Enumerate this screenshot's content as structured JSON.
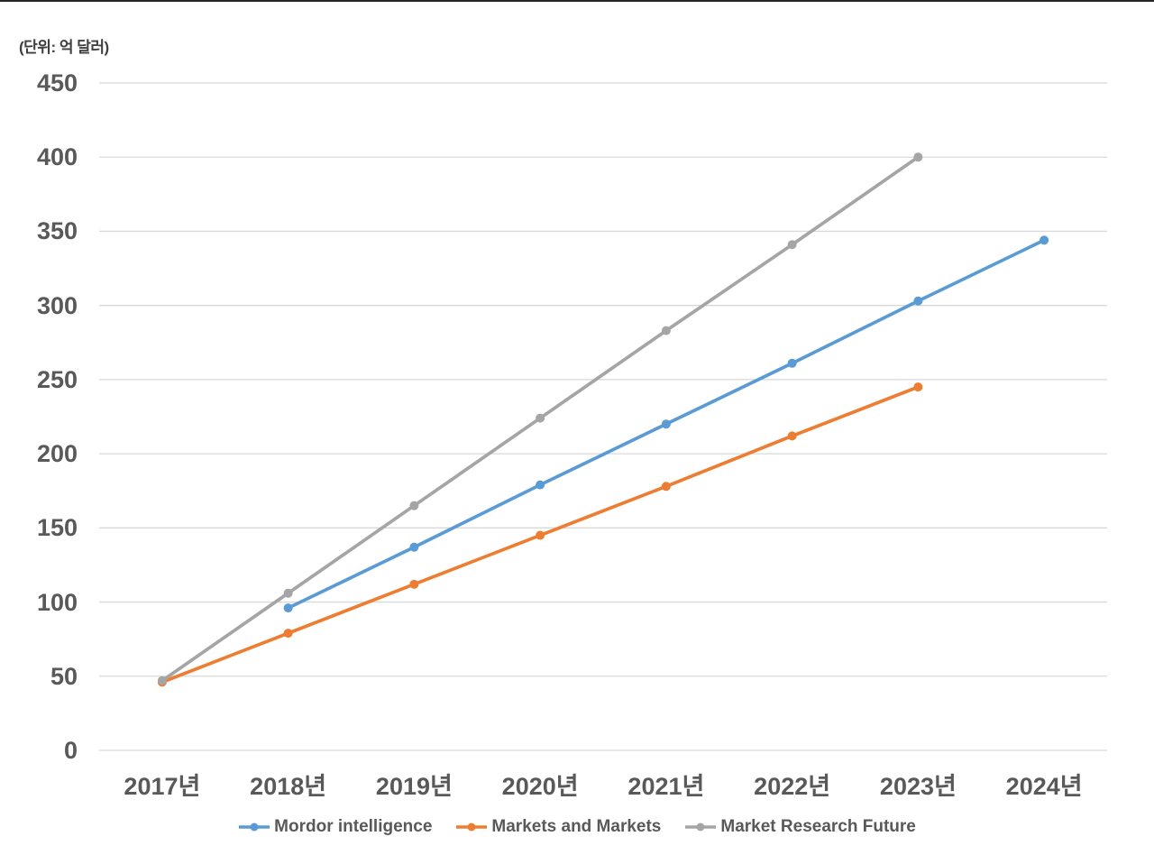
{
  "page": {
    "background": "#FFFFFF",
    "top_border_color": "#262626"
  },
  "chart_data": {
    "type": "line",
    "title": "",
    "unit_label": "(단위: 억 달러)",
    "xlabel": "",
    "ylabel": "",
    "categories": [
      "2017년",
      "2018년",
      "2019년",
      "2020년",
      "2021년",
      "2022년",
      "2023년",
      "2024년"
    ],
    "series": [
      {
        "name": "Mordor intelligence",
        "color": "#5B9BD5",
        "values": [
          null,
          96,
          137,
          179,
          220,
          261,
          303,
          344
        ]
      },
      {
        "name": "Markets and Markets",
        "color": "#ED7D31",
        "values": [
          46,
          79,
          112,
          145,
          178,
          212,
          245,
          null
        ]
      },
      {
        "name": "Market Research Future",
        "color": "#A5A5A5",
        "values": [
          47,
          106,
          165,
          224,
          283,
          341,
          400,
          null
        ]
      }
    ],
    "ylim": [
      0,
      450
    ],
    "ytick_step": 50,
    "grid": true,
    "gridline_color": "#D9D9D9",
    "axis_text_color": "#595959",
    "legend_position": "bottom",
    "marker_shape": "circle"
  }
}
